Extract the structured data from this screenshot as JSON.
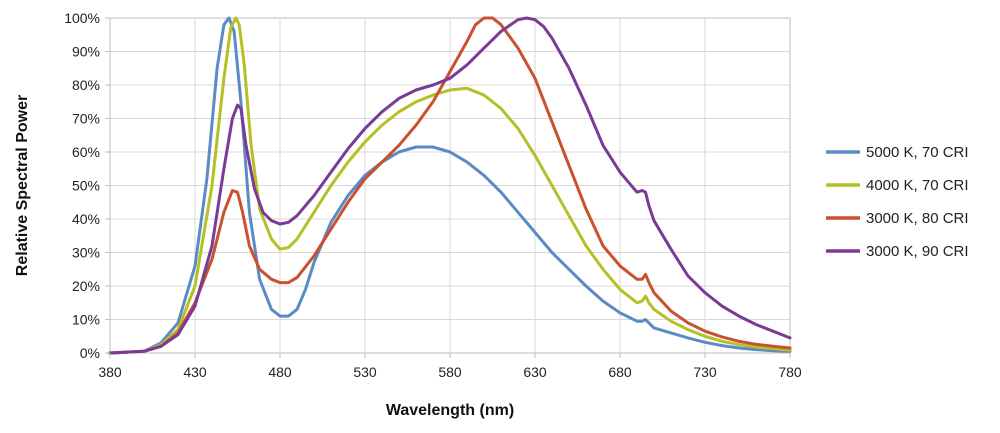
{
  "chart_data": {
    "type": "line",
    "title": "",
    "xlabel": "Wavelength (nm)",
    "ylabel": "Relative Spectral Power",
    "xlim": [
      380,
      780
    ],
    "ylim": [
      0,
      100
    ],
    "x_ticks": [
      380,
      430,
      480,
      530,
      580,
      630,
      680,
      730,
      780
    ],
    "y_ticks": [
      0,
      10,
      20,
      30,
      40,
      50,
      60,
      70,
      80,
      90,
      100
    ],
    "y_tick_labels": [
      "0%",
      "10%",
      "20%",
      "30%",
      "40%",
      "50%",
      "60%",
      "70%",
      "80%",
      "90%",
      "100%"
    ],
    "grid": true,
    "legend_position": "right",
    "series": [
      {
        "name": "5000 K, 70 CRI",
        "color": "#5b8ac6",
        "x": [
          380,
          400,
          410,
          420,
          430,
          437,
          443,
          447,
          450,
          453,
          457,
          462,
          468,
          475,
          480,
          485,
          490,
          495,
          500,
          510,
          520,
          530,
          540,
          550,
          560,
          570,
          580,
          590,
          600,
          610,
          620,
          630,
          640,
          650,
          660,
          670,
          680,
          690,
          693,
          695,
          697,
          700,
          710,
          720,
          730,
          740,
          750,
          760,
          770,
          780
        ],
        "y": [
          0,
          0.5,
          3,
          9,
          26,
          52,
          85,
          98,
          100,
          96,
          75,
          42,
          22,
          13,
          11,
          11,
          13,
          19,
          27,
          39,
          47,
          53,
          57,
          60,
          61.5,
          61.5,
          60,
          57,
          53,
          48,
          42,
          36,
          30,
          25,
          20,
          15.5,
          12,
          9.5,
          9.5,
          10,
          9,
          7.5,
          6,
          4.5,
          3.2,
          2.2,
          1.5,
          1,
          0.7,
          0.5
        ]
      },
      {
        "name": "4000 K, 70 CRI",
        "color": "#b5c026",
        "x": [
          380,
          400,
          410,
          420,
          430,
          440,
          447,
          451,
          454,
          456,
          459,
          463,
          468,
          475,
          480,
          485,
          490,
          500,
          510,
          520,
          530,
          540,
          550,
          560,
          570,
          580,
          590,
          600,
          610,
          620,
          630,
          640,
          650,
          660,
          670,
          680,
          690,
          693,
          695,
          697,
          700,
          710,
          720,
          730,
          740,
          750,
          760,
          770,
          780
        ],
        "y": [
          0,
          0.5,
          2.5,
          7,
          20,
          50,
          82,
          97,
          100,
          98,
          86,
          62,
          43,
          34,
          31,
          31.5,
          34,
          42,
          50,
          57,
          63,
          68,
          72,
          75,
          77,
          78.5,
          79,
          77,
          73,
          67,
          59,
          50,
          41,
          32,
          25,
          19,
          15,
          15.5,
          17,
          15,
          13,
          9.5,
          7,
          5,
          3.5,
          2.5,
          1.8,
          1.3,
          0.9
        ]
      },
      {
        "name": "3000 K, 80 CRI",
        "color": "#c9512d",
        "x": [
          380,
          400,
          410,
          420,
          430,
          440,
          447,
          452,
          455,
          458,
          462,
          468,
          475,
          480,
          485,
          490,
          500,
          510,
          520,
          530,
          540,
          550,
          560,
          570,
          580,
          590,
          595,
          600,
          605,
          610,
          620,
          630,
          640,
          650,
          660,
          670,
          680,
          690,
          693,
          695,
          697,
          700,
          710,
          720,
          730,
          740,
          750,
          760,
          770,
          780
        ],
        "y": [
          0,
          0.5,
          2,
          6,
          15,
          28,
          42,
          48.5,
          48,
          42,
          32,
          25,
          22,
          21,
          21,
          22.5,
          29,
          37,
          45,
          52,
          57,
          62,
          68,
          75,
          84,
          93,
          98,
          100,
          100,
          98,
          91,
          82,
          69,
          56,
          43,
          32,
          26,
          22,
          22,
          23.5,
          21,
          18,
          12.5,
          9,
          6.5,
          4.8,
          3.5,
          2.6,
          2,
          1.5
        ]
      },
      {
        "name": "3000 K, 90 CRI",
        "color": "#7b3a96",
        "x": [
          380,
          400,
          410,
          420,
          430,
          440,
          447,
          452,
          455,
          457,
          460,
          465,
          470,
          475,
          480,
          485,
          490,
          500,
          510,
          520,
          530,
          540,
          550,
          560,
          570,
          580,
          590,
          600,
          610,
          620,
          625,
          630,
          635,
          640,
          650,
          660,
          670,
          680,
          690,
          693,
          695,
          697,
          700,
          710,
          720,
          730,
          740,
          750,
          760,
          770,
          780
        ],
        "y": [
          0,
          0.5,
          2,
          5.5,
          14,
          32,
          55,
          70,
          74,
          73,
          62,
          49,
          42,
          39.5,
          38.5,
          39,
          41,
          47,
          54,
          61,
          67,
          72,
          76,
          78.5,
          80,
          82,
          86,
          91,
          96,
          99.5,
          100,
          99.5,
          97.5,
          94,
          85,
          74,
          62,
          54,
          48,
          48.5,
          48,
          44,
          39.5,
          31,
          23,
          18,
          14,
          11,
          8.5,
          6.5,
          4.5
        ]
      }
    ]
  }
}
